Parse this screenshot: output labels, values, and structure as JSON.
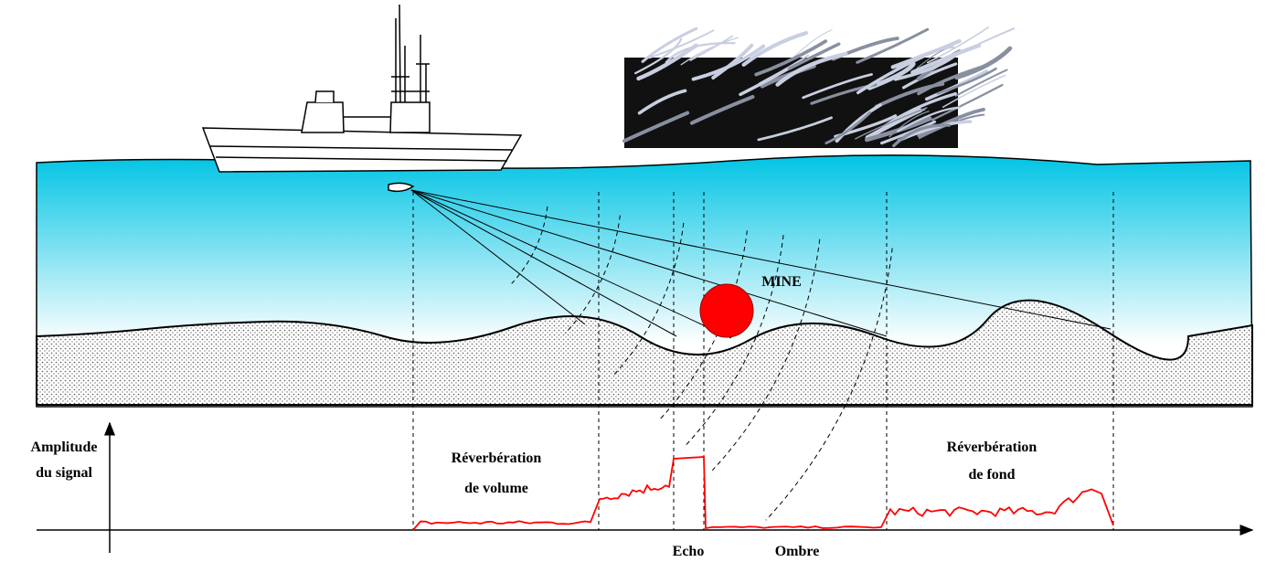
{
  "labels": {
    "mine": "MINE",
    "amplitude": [
      "Amplitude",
      "du signal"
    ],
    "volume_reverb": [
      "Réverbération",
      "de volume"
    ],
    "bottom_reverb": [
      "Réverbération",
      "de fond"
    ],
    "echo": "Echo",
    "shadow": "Ombre"
  }
}
